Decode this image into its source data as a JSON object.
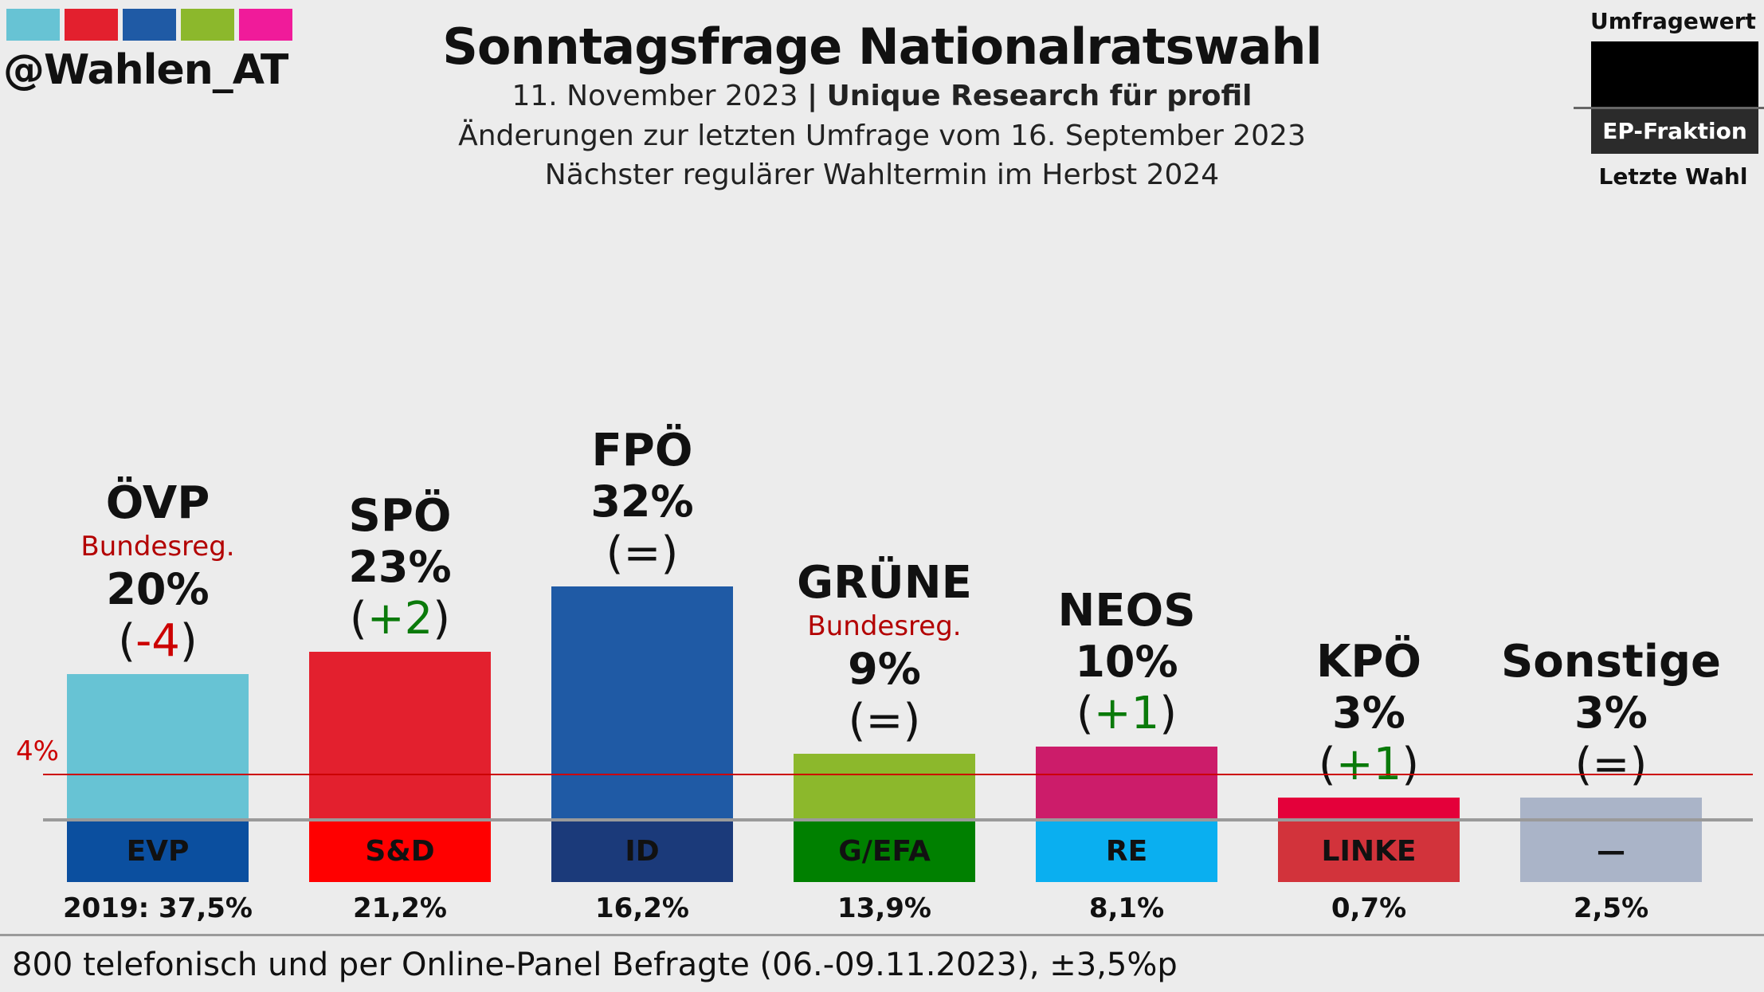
{
  "brand": {
    "handle": "@Wahlen_AT",
    "swatches": [
      "#67c3d4",
      "#e3202e",
      "#1f5aa5",
      "#8cb82c",
      "#f01b9a"
    ]
  },
  "header": {
    "title": "Sonntagsfrage Nationalratswahl",
    "date": "11. November 2023",
    "separator": "|",
    "source": "Unique Research für profil",
    "changes": "Änderungen zur letzten Umfrage vom 16. September 2023",
    "next_election": "Nächster regulärer Wahltermin im Herbst 2024"
  },
  "legend": {
    "top": "Umfragewert",
    "middle": "EP-Fraktion",
    "bottom": "Letzte Wahl"
  },
  "footer": {
    "text": "800 telefonisch und per Online-Panel Befragte (06.-09.11.2023), ±3,5%p"
  },
  "chart_data": {
    "type": "bar",
    "title": "Sonntagsfrage Nationalratswahl",
    "unit": "%",
    "threshold": {
      "value": 4,
      "label": "4%"
    },
    "categories": [
      "ÖVP",
      "SPÖ",
      "FPÖ",
      "GRÜNE",
      "NEOS",
      "KPÖ",
      "Sonstige"
    ],
    "values": [
      20,
      23,
      32,
      9,
      10,
      3,
      3
    ],
    "parties": [
      {
        "name": "ÖVP",
        "value": 20,
        "value_label": "20%",
        "change": "-4",
        "change_dir": "down",
        "government": "Bundesreg.",
        "color": "#67c3d4",
        "ep_group": "EVP",
        "ep_color": "#0b4f9f",
        "ep_text": "#111111",
        "last_election": "2019: 37,5%"
      },
      {
        "name": "SPÖ",
        "value": 23,
        "value_label": "23%",
        "change": "+2",
        "change_dir": "up",
        "government": "",
        "color": "#e3202e",
        "ep_group": "S&D",
        "ep_color": "#ff0000",
        "ep_text": "#111111",
        "last_election": "21,2%"
      },
      {
        "name": "FPÖ",
        "value": 32,
        "value_label": "32%",
        "change": "=",
        "change_dir": "same",
        "government": "",
        "color": "#1f5aa5",
        "ep_group": "ID",
        "ep_color": "#1b3a7a",
        "ep_text": "#111111",
        "last_election": "16,2%"
      },
      {
        "name": "GRÜNE",
        "value": 9,
        "value_label": "9%",
        "change": "=",
        "change_dir": "same",
        "government": "Bundesreg.",
        "color": "#8cb82c",
        "ep_group": "G/EFA",
        "ep_color": "#008000",
        "ep_text": "#111111",
        "last_election": "13,9%"
      },
      {
        "name": "NEOS",
        "value": 10,
        "value_label": "10%",
        "change": "+1",
        "change_dir": "up",
        "government": "",
        "color": "#cc1c6a",
        "ep_group": "RE",
        "ep_color": "#0aaff0",
        "ep_text": "#111111",
        "last_election": "8,1%"
      },
      {
        "name": "KPÖ",
        "value": 3,
        "value_label": "3%",
        "change": "+1",
        "change_dir": "up",
        "government": "",
        "color": "#e4003a",
        "ep_group": "LINKE",
        "ep_color": "#d2333b",
        "ep_text": "#111111",
        "last_election": "0,7%"
      },
      {
        "name": "Sonstige",
        "value": 3,
        "value_label": "3%",
        "change": "=",
        "change_dir": "same",
        "government": "",
        "color": "#aab4c8",
        "ep_group": "—",
        "ep_color": "#aab4c8",
        "ep_text": "#111111",
        "last_election": "2,5%"
      }
    ],
    "change_colors": {
      "up": "#0a7a0a",
      "down": "#cc0000",
      "same": "#111111"
    }
  }
}
